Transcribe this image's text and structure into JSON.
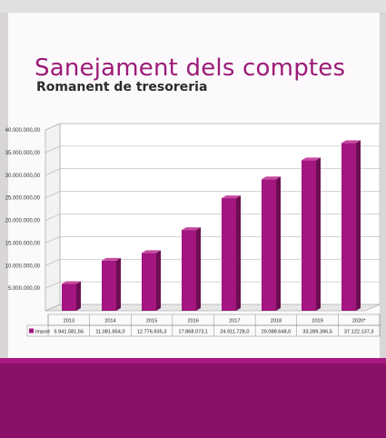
{
  "slide": {
    "title": "Sanejament dels comptes",
    "subtitle": "Romanent de tresoreria"
  },
  "colors": {
    "bar_front": "#a3157f",
    "bar_side": "#6c0e54",
    "bar_top": "#c64aa1",
    "title": "#9c1a78",
    "band": "#8a0f66"
  },
  "chart_data": {
    "type": "bar",
    "title": "",
    "xlabel": "",
    "ylabel": "",
    "categories": [
      "2013",
      "2014",
      "2015",
      "2016",
      "2017",
      "2018",
      "2019",
      "2020*"
    ],
    "series": [
      {
        "name": "Import",
        "values": [
          5941581.56,
          11081854.0,
          12776935.3,
          17868073.1,
          24911728.0,
          29088648.0,
          33289396.5,
          37122137.3
        ],
        "labels": [
          "5.941.581,56",
          "11.081.854,0",
          "12.776.935,3",
          "17.868.073,1",
          "24.911.728,0",
          "29.088.648,0",
          "33.289.396,5",
          "37.122.137,3"
        ]
      }
    ],
    "ylim": [
      0,
      40000000
    ],
    "yticks": [
      0,
      5000000,
      10000000,
      15000000,
      20000000,
      25000000,
      30000000,
      35000000,
      40000000
    ],
    "ytick_labels": [
      "",
      "5.000.000,00",
      "10.000.000,00",
      "15.000.000,00",
      "20.000.000,00",
      "25.000.000,00",
      "30.000.000,00",
      "35.000.000,00",
      "40.000.000,00"
    ],
    "grid": true,
    "data_table": true
  }
}
